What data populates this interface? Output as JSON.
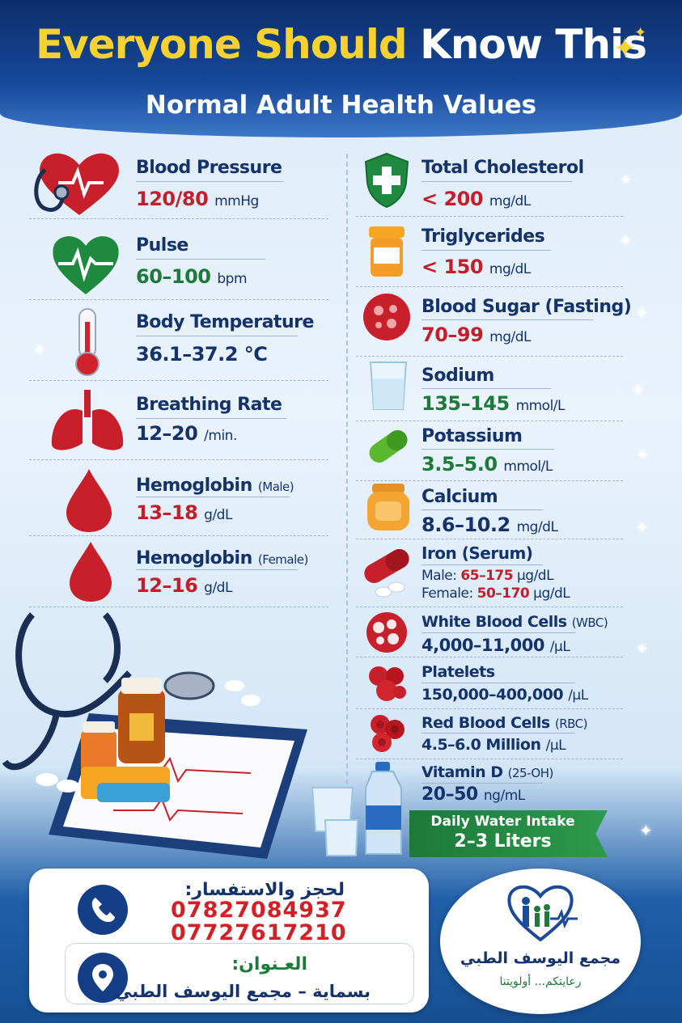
{
  "header": {
    "title_part1": "Everyone Should",
    "title_part2": "Know This",
    "subtitle": "Normal Adult Health Values"
  },
  "left_items": [
    {
      "label": "Blood Pressure",
      "value": "120/80",
      "unit": "mmHg",
      "icon": "heart-stethoscope-icon"
    },
    {
      "label": "Pulse",
      "value": "60–100",
      "unit": "bpm",
      "icon": "heartbeat-icon"
    },
    {
      "label": "Body Temperature",
      "value": "36.1–37.2 °C",
      "unit": "",
      "icon": "thermometer-icon"
    },
    {
      "label": "Breathing Rate",
      "value": "12–20",
      "unit": "/min.",
      "icon": "lungs-icon"
    },
    {
      "label": "Hemoglobin",
      "label_note": "(Male)",
      "value": "13–18",
      "unit": "g/dL",
      "icon": "blood-drop-icon"
    },
    {
      "label": "Hemoglobin",
      "label_note": "(Female)",
      "value": "12–16",
      "unit": "g/dL",
      "icon": "blood-drop-icon"
    }
  ],
  "right_items": [
    {
      "label": "Total Cholesterol",
      "value": "< 200",
      "unit": "mg/dL",
      "icon": "shield-cross-icon"
    },
    {
      "label": "Triglycerides",
      "value": "< 150",
      "unit": "mg/dL",
      "icon": "pill-bottle-icon"
    },
    {
      "label": "Blood Sugar (Fasting)",
      "value": "70–99",
      "unit": "mg/dL",
      "icon": "blood-cell-icon"
    },
    {
      "label": "Sodium",
      "value": "135–145",
      "unit": "mmol/L",
      "icon": "water-glass-icon"
    },
    {
      "label": "Potassium",
      "value": "3.5–5.0",
      "unit": "mmol/L",
      "icon": "capsule-icon"
    },
    {
      "label": "Calcium",
      "value": "8.6–10.2",
      "unit": "mg/dL",
      "icon": "supplement-jar-icon"
    },
    {
      "label": "Iron (Serum)",
      "male_label": "Male:",
      "male_value": "65–175",
      "female_label": "Female:",
      "female_value": "50–170",
      "unit": "µg/dL",
      "icon": "iron-pill-icon"
    },
    {
      "label": "White Blood Cells",
      "label_note": "(WBC)",
      "value": "4,000–11,000",
      "unit": "/µL",
      "icon": "white-cells-icon"
    },
    {
      "label": "Platelets",
      "value": "150,000–400,000",
      "unit": "/µL",
      "icon": "platelets-icon"
    },
    {
      "label": "Red Blood Cells",
      "label_note": "(RBC)",
      "value": "4.5–6.0 Million",
      "unit": "/µL",
      "icon": "red-cells-icon"
    },
    {
      "label": "Vitamin D",
      "label_note": "(25-OH)",
      "value": "20–50",
      "unit": "ng/mL",
      "icon": "water-bottle-icon"
    }
  ],
  "water": {
    "label": "Daily Water Intake",
    "value": "2–3 Liters"
  },
  "contact": {
    "booking_label": "لحجز والاستفسار:",
    "phone1": "07827084937",
    "phone2": "07727617210",
    "address_label": "العـنوان:",
    "address": "بسماية – مجمع اليوسف الطبي"
  },
  "logo": {
    "name": "مجمع اليوسف الطبي",
    "slogan": "رعايتكم... أولويتنا"
  },
  "colors": {
    "red": "#c31f2a",
    "green": "#1d7a3a",
    "navy": "#15336b",
    "yellow": "#f6d130"
  }
}
